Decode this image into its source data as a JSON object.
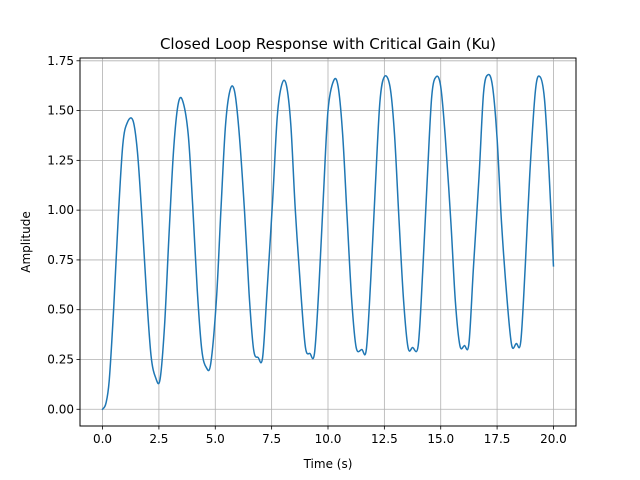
{
  "chart_data": {
    "type": "line",
    "title": "Closed Loop Response with Critical Gain (Ku)",
    "xlabel": "Time (s)",
    "ylabel": "Amplitude",
    "xlim": [
      -1.0,
      21.0
    ],
    "ylim": [
      -0.084,
      1.764
    ],
    "x_ticks": [
      0.0,
      2.5,
      5.0,
      7.5,
      10.0,
      12.5,
      15.0,
      17.5,
      20.0
    ],
    "x_tick_labels": [
      "0.0",
      "2.5",
      "5.0",
      "7.5",
      "10.0",
      "12.5",
      "15.0",
      "17.5",
      "20.0"
    ],
    "y_ticks": [
      0.0,
      0.25,
      0.5,
      0.75,
      1.0,
      1.25,
      1.5,
      1.75
    ],
    "y_tick_labels": [
      "0.00",
      "0.25",
      "0.50",
      "0.75",
      "1.00",
      "1.25",
      "1.50",
      "1.75"
    ],
    "grid": true,
    "legend": "none",
    "series": [
      {
        "color": "#1f77b4",
        "x": [
          0.0,
          0.15,
          0.3,
          0.5,
          0.7,
          0.9,
          1.1,
          1.35,
          1.55,
          1.75,
          1.95,
          2.15,
          2.35,
          2.55,
          2.75,
          2.95,
          3.15,
          3.35,
          3.55,
          3.8,
          4.0,
          4.2,
          4.4,
          4.6,
          4.8,
          5.05,
          5.25,
          5.45,
          5.65,
          5.85,
          6.05,
          6.3,
          6.5,
          6.7,
          6.9,
          7.1,
          7.3,
          7.55,
          7.75,
          7.95,
          8.15,
          8.35,
          8.55,
          8.8,
          9.0,
          9.2,
          9.4,
          9.6,
          9.8,
          10.0,
          10.25,
          10.45,
          10.65,
          10.85,
          11.05,
          11.25,
          11.5,
          11.7,
          11.9,
          12.1,
          12.3,
          12.5,
          12.75,
          12.95,
          13.15,
          13.35,
          13.55,
          13.75,
          14.0,
          14.2,
          14.4,
          14.6,
          14.8,
          15.0,
          15.2,
          15.45,
          15.65,
          15.85,
          16.05,
          16.25,
          16.45,
          16.7,
          16.9,
          17.1,
          17.3,
          17.5,
          17.7,
          17.95,
          18.15,
          18.35,
          18.55,
          18.75,
          18.95,
          19.2,
          19.4,
          19.6,
          19.8,
          20.0
        ],
        "y": [
          0.0,
          0.03,
          0.15,
          0.52,
          0.97,
          1.33,
          1.44,
          1.45,
          1.29,
          0.96,
          0.58,
          0.27,
          0.16,
          0.15,
          0.42,
          0.88,
          1.3,
          1.53,
          1.55,
          1.38,
          1.02,
          0.6,
          0.3,
          0.21,
          0.23,
          0.55,
          1.0,
          1.42,
          1.6,
          1.6,
          1.4,
          0.99,
          0.58,
          0.3,
          0.26,
          0.26,
          0.6,
          1.06,
          1.47,
          1.63,
          1.63,
          1.43,
          1.0,
          0.58,
          0.31,
          0.28,
          0.28,
          0.62,
          1.08,
          1.5,
          1.65,
          1.62,
          1.38,
          0.96,
          0.55,
          0.31,
          0.3,
          0.3,
          0.66,
          1.12,
          1.54,
          1.67,
          1.62,
          1.38,
          0.95,
          0.55,
          0.31,
          0.31,
          0.32,
          0.69,
          1.15,
          1.57,
          1.67,
          1.62,
          1.37,
          0.94,
          0.54,
          0.32,
          0.32,
          0.33,
          0.71,
          1.17,
          1.59,
          1.68,
          1.62,
          1.36,
          0.93,
          0.54,
          0.32,
          0.33,
          0.34,
          0.72,
          1.18,
          1.6,
          1.67,
          1.56,
          1.2,
          0.72
        ]
      }
    ]
  }
}
